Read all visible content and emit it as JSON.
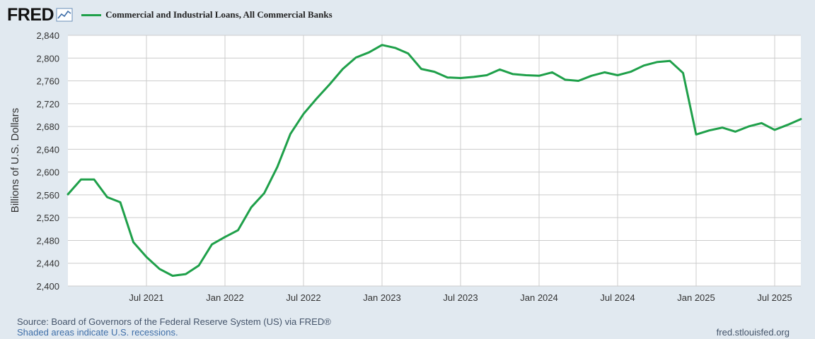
{
  "header": {
    "logo_text": "FRED",
    "legend_label": "Commercial and Industrial Loans, All Commercial Banks"
  },
  "footer": {
    "source": "Source: Board of Governors of the Federal Reserve System (US) via FRED®",
    "shaded_note": "Shaded areas indicate U.S. recessions.",
    "url": "fred.stlouisfed.org"
  },
  "colors": {
    "series": "#1fa04a",
    "background": "#e1e9f0",
    "plot_bg": "#ffffff",
    "grid": "#cccccc"
  },
  "chart_data": {
    "type": "line",
    "ylabel": "Billions of U.S. Dollars",
    "xlim": [
      "2021-01",
      "2025-09"
    ],
    "ylim": [
      2400,
      2840
    ],
    "yticks": [
      2400,
      2440,
      2480,
      2520,
      2560,
      2600,
      2640,
      2680,
      2720,
      2760,
      2800,
      2840
    ],
    "ytick_labels": [
      "2,400",
      "2,440",
      "2,480",
      "2,520",
      "2,560",
      "2,600",
      "2,640",
      "2,680",
      "2,720",
      "2,760",
      "2,800",
      "2,840"
    ],
    "xticks": [
      "2021-07",
      "2022-01",
      "2022-07",
      "2023-01",
      "2023-07",
      "2024-01",
      "2024-07",
      "2025-01",
      "2025-07"
    ],
    "xtick_labels": [
      "Jul 2021",
      "Jan 2022",
      "Jul 2022",
      "Jan 2023",
      "Jul 2023",
      "Jan 2024",
      "Jul 2024",
      "Jan 2025",
      "Jul 2025"
    ],
    "grid": true,
    "legend_position": "top-left",
    "series": [
      {
        "name": "Commercial and Industrial Loans, All Commercial Banks",
        "color": "#1fa04a",
        "x": [
          "2021-01",
          "2021-02",
          "2021-03",
          "2021-04",
          "2021-05",
          "2021-06",
          "2021-07",
          "2021-08",
          "2021-09",
          "2021-10",
          "2021-11",
          "2021-12",
          "2022-01",
          "2022-02",
          "2022-03",
          "2022-04",
          "2022-05",
          "2022-06",
          "2022-07",
          "2022-08",
          "2022-09",
          "2022-10",
          "2022-11",
          "2022-12",
          "2023-01",
          "2023-02",
          "2023-03",
          "2023-04",
          "2023-05",
          "2023-06",
          "2023-07",
          "2023-08",
          "2023-09",
          "2023-10",
          "2023-11",
          "2023-12",
          "2024-01",
          "2024-02",
          "2024-03",
          "2024-04",
          "2024-05",
          "2024-06",
          "2024-07",
          "2024-08",
          "2024-09",
          "2024-10",
          "2024-11",
          "2024-12",
          "2025-01",
          "2025-02",
          "2025-03",
          "2025-04",
          "2025-05",
          "2025-06",
          "2025-07",
          "2025-08",
          "2025-09"
        ],
        "y": [
          2561,
          2587,
          2587,
          2556,
          2547,
          2477,
          2451,
          2430,
          2418,
          2421,
          2436,
          2473,
          2486,
          2498,
          2538,
          2563,
          2609,
          2667,
          2702,
          2729,
          2754,
          2781,
          2801,
          2810,
          2823,
          2818,
          2808,
          2781,
          2776,
          2766,
          2765,
          2767,
          2770,
          2780,
          2772,
          2770,
          2769,
          2775,
          2762,
          2760,
          2769,
          2775,
          2770,
          2776,
          2787,
          2793,
          2795,
          2774,
          2666,
          2673,
          2678,
          2671,
          2680,
          2686,
          2674,
          2683,
          2693
        ]
      }
    ]
  }
}
